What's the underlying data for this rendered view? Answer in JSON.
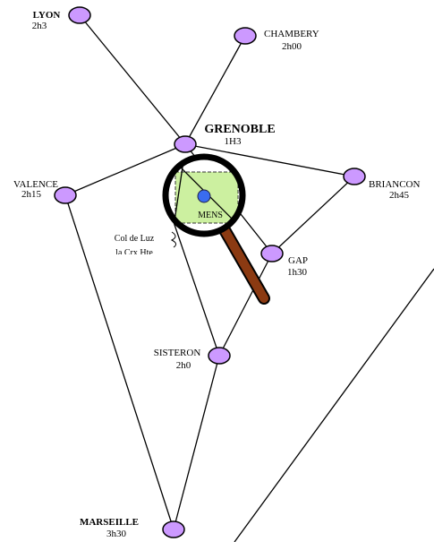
{
  "nodes": [
    {
      "name": "LYON",
      "time": "2h3"
    },
    {
      "name": "CHAMBERY",
      "time": "2h00"
    },
    {
      "name": "GRENOBLE",
      "time": "1H3"
    },
    {
      "name": "VALENCE",
      "time": "2h15"
    },
    {
      "name": "BRIANCON",
      "time": "2h45"
    },
    {
      "name": "GAP",
      "time": "1h30"
    },
    {
      "name": "SISTERON",
      "time": "2h0"
    },
    {
      "name": "MARSEILLE",
      "time": "3h30"
    }
  ],
  "lens_label": "MENS",
  "pass": {
    "label": "Col de Luz",
    "sublabel": "la Crx Hte"
  }
}
